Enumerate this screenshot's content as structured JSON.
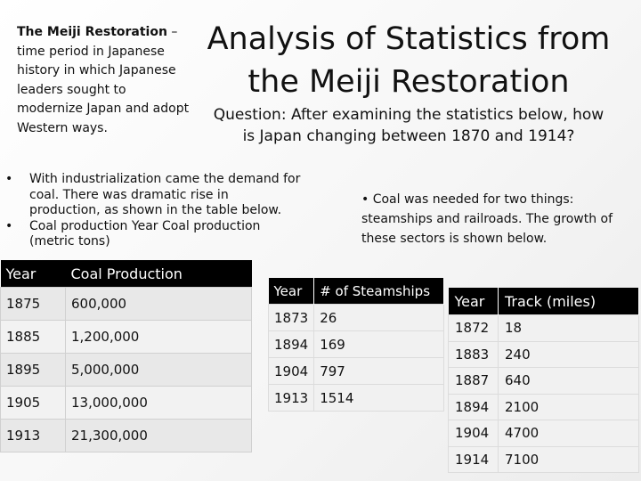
{
  "intro": {
    "term": "The Meiji Restoration",
    "definition": " – time period in Japanese history in which Japanese leaders sought to modernize Japan and adopt Western ways."
  },
  "title": "Analysis of Statistics from the Meiji Restoration",
  "question": "Question: After examining the statistics below, how is Japan changing between 1870 and 1914?",
  "bullets": [
    {
      "marker": "•",
      "text": "With industrialization came the demand for coal. There was dramatic rise in production, as shown in the table below."
    },
    {
      "marker": "•",
      "text": "Coal production Year Coal production (metric tons)"
    }
  ],
  "coal_note": "• Coal was needed for two things: steamships and railroads. The growth of these sectors is shown below.",
  "coal_table": {
    "headers": [
      "Year",
      "Coal Production"
    ],
    "rows": [
      [
        "1875",
        "600,000"
      ],
      [
        "1885",
        "1,200,000"
      ],
      [
        "1895",
        "5,000,000"
      ],
      [
        "1905",
        "13,000,000"
      ],
      [
        "1913",
        "21,300,000"
      ]
    ]
  },
  "ship_table": {
    "headers": [
      "Year",
      "# of Steamships"
    ],
    "rows": [
      [
        "1873",
        "26"
      ],
      [
        "1894",
        "169"
      ],
      [
        "1904",
        "797"
      ],
      [
        "1913",
        "1514"
      ]
    ]
  },
  "rail_table": {
    "headers": [
      "Year",
      "Track (miles)"
    ],
    "rows": [
      [
        "1872",
        "18"
      ],
      [
        "1883",
        "240"
      ],
      [
        "1887",
        "640"
      ],
      [
        "1894",
        "2100"
      ],
      [
        "1904",
        "4700"
      ],
      [
        "1914",
        "7100"
      ]
    ]
  }
}
